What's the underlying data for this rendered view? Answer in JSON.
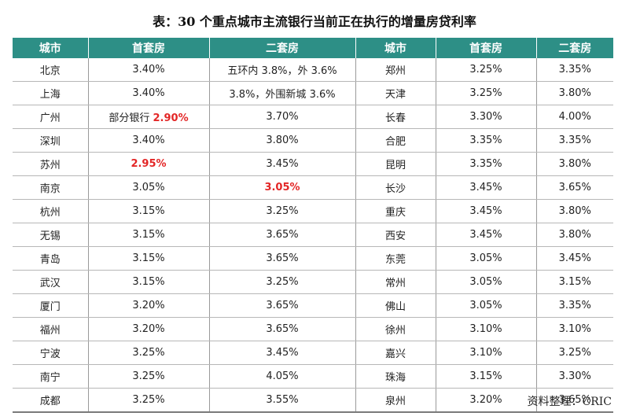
{
  "title": "表：30 个重点城市主流银行当前正在执行的增量房贷利率",
  "headers": [
    "城市",
    "首套房",
    "二套房",
    "城市",
    "首套房",
    "二套房"
  ],
  "rows": [
    {
      "city": "北京",
      "first": "3.40%",
      "second": "五环内 3.8%，外 3.6%",
      "city2": "郑州",
      "first2": "3.25%",
      "second2": "3.35%"
    },
    {
      "city": "上海",
      "first": "3.40%",
      "second": "3.8%，外围新城 3.6%",
      "city2": "天津",
      "first2": "3.25%",
      "second2": "3.80%"
    },
    {
      "city": "广州",
      "first_prefix": "部分银行",
      "first": "2.90%",
      "second": "3.70%",
      "city2": "长春",
      "first2": "3.30%",
      "second2": "4.00%"
    },
    {
      "city": "深圳",
      "first": "3.40%",
      "second": "3.80%",
      "city2": "合肥",
      "first2": "3.35%",
      "second2": "3.35%"
    },
    {
      "city": "苏州",
      "first": "2.95%",
      "second": "3.45%",
      "city2": "昆明",
      "first2": "3.35%",
      "second2": "3.80%"
    },
    {
      "city": "南京",
      "first": "3.05%",
      "second": "3.05%",
      "city2": "长沙",
      "first2": "3.45%",
      "second2": "3.65%"
    },
    {
      "city": "杭州",
      "first": "3.15%",
      "second": "3.25%",
      "city2": "重庆",
      "first2": "3.45%",
      "second2": "3.80%"
    },
    {
      "city": "无锡",
      "first": "3.15%",
      "second": "3.65%",
      "city2": "西安",
      "first2": "3.45%",
      "second2": "3.80%"
    },
    {
      "city": "青岛",
      "first": "3.15%",
      "second": "3.65%",
      "city2": "东莞",
      "first2": "3.05%",
      "second2": "3.45%"
    },
    {
      "city": "武汉",
      "first": "3.15%",
      "second": "3.25%",
      "city2": "常州",
      "first2": "3.05%",
      "second2": "3.15%"
    },
    {
      "city": "厦门",
      "first": "3.20%",
      "second": "3.65%",
      "city2": "佛山",
      "first2": "3.05%",
      "second2": "3.35%"
    },
    {
      "city": "福州",
      "first": "3.20%",
      "second": "3.65%",
      "city2": "徐州",
      "first2": "3.10%",
      "second2": "3.10%"
    },
    {
      "city": "宁波",
      "first": "3.25%",
      "second": "3.45%",
      "city2": "嘉兴",
      "first2": "3.10%",
      "second2": "3.25%"
    },
    {
      "city": "南宁",
      "first": "3.25%",
      "second": "4.05%",
      "city2": "珠海",
      "first2": "3.15%",
      "second2": "3.30%"
    },
    {
      "city": "成都",
      "first": "3.25%",
      "second": "3.55%",
      "city2": "泉州",
      "first2": "3.20%",
      "second2": "3.65%"
    }
  ],
  "source": "资料整理：CRIC",
  "colors": {
    "header_bg": "#2d8f86",
    "highlight": "#e32626"
  }
}
